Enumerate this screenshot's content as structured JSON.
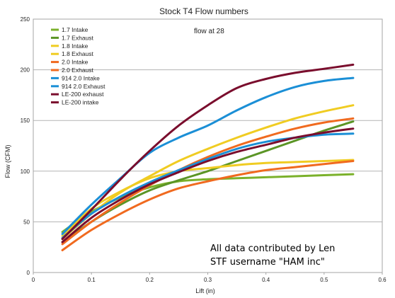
{
  "chart_data": {
    "type": "line",
    "title": "Stock T4 Flow numbers",
    "subtitle": "flow at 28",
    "xlabel": "Lift (in)",
    "ylabel": "Flow (CFM)",
    "xlim": [
      0,
      0.6
    ],
    "ylim": [
      0,
      250
    ],
    "x_ticks": [
      "0",
      "0.1",
      "0.2",
      "0.3",
      "0.4",
      "0.5",
      "0.6"
    ],
    "y_ticks": [
      "0",
      "50",
      "100",
      "150",
      "200",
      "250"
    ],
    "grid": "horizontal",
    "legend_position": "top-left",
    "x": [
      0.05,
      0.1,
      0.15,
      0.2,
      0.25,
      0.3,
      0.35,
      0.4,
      0.45,
      0.5,
      0.55
    ],
    "series": [
      {
        "name": "1.7 Intake",
        "color": "#7bb12b",
        "values": [
          40,
          60,
          74,
          84,
          90,
          92,
          93,
          94,
          95,
          96,
          97
        ]
      },
      {
        "name": "1.7 Exhaust",
        "color": "#5b9526",
        "values": [
          30,
          50,
          67,
          81,
          91,
          100,
          110,
          120,
          130,
          140,
          149
        ]
      },
      {
        "name": "1.8 Intake",
        "color": "#f0cc22",
        "values": [
          36,
          63,
          80,
          93,
          100,
          103,
          106,
          108,
          109,
          110,
          111
        ]
      },
      {
        "name": "1.8 Exhaust",
        "color": "#f0cc22",
        "values": [
          33,
          58,
          79,
          95,
          110,
          122,
          133,
          143,
          152,
          159,
          165
        ]
      },
      {
        "name": "2.0 Intake",
        "color": "#f06a1f",
        "values": [
          22,
          42,
          58,
          72,
          83,
          90,
          96,
          101,
          104,
          107,
          110
        ]
      },
      {
        "name": "2.0 Exhaust",
        "color": "#f06a1f",
        "values": [
          28,
          50,
          69,
          86,
          101,
          114,
          125,
          134,
          142,
          148,
          152
        ]
      },
      {
        "name": "914 2.0 Intake",
        "color": "#1b8fd6",
        "values": [
          34,
          58,
          75,
          89,
          101,
          112,
          122,
          129,
          133,
          136,
          137
        ]
      },
      {
        "name": "914 2.0 Exhaust",
        "color": "#1b8fd6",
        "values": [
          38,
          67,
          93,
          118,
          133,
          145,
          160,
          173,
          183,
          189,
          192
        ]
      },
      {
        "name": "LE-200 exhaust",
        "color": "#7a0d2d",
        "values": [
          33,
          62,
          92,
          120,
          145,
          165,
          182,
          191,
          197,
          201,
          205
        ]
      },
      {
        "name": "LE-200 intake",
        "color": "#7a0d2d",
        "values": [
          30,
          54,
          72,
          87,
          99,
          110,
          119,
          126,
          133,
          138,
          142
        ]
      }
    ],
    "annotation_line1": "All data contributed by Len",
    "annotation_line2": "STF username \"HAM inc\""
  }
}
